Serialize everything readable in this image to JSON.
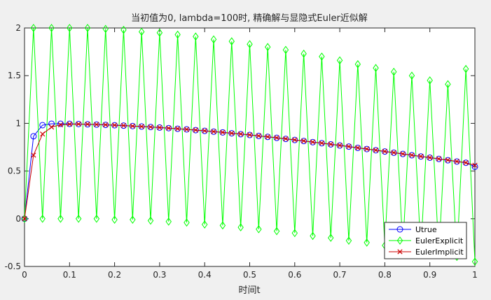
{
  "chart_data": {
    "type": "line",
    "title": "当初值为0, lambda=100时, 精确解与显隐式Euler近似解",
    "xlabel": "时间t",
    "ylabel": "",
    "xlim": [
      0,
      1
    ],
    "ylim": [
      -0.5,
      2
    ],
    "xticks": [
      0,
      0.1,
      0.2,
      0.3,
      0.4,
      0.5,
      0.6,
      0.7,
      0.8,
      0.9,
      1
    ],
    "xtick_labels": [
      "0",
      "0.1",
      "0.2",
      "0.3",
      "0.4",
      "0.5",
      "0.6",
      "0.7",
      "0.8",
      "0.9",
      "1"
    ],
    "yticks": [
      -0.5,
      0,
      0.5,
      1,
      1.5,
      2
    ],
    "ytick_labels": [
      "-0.5",
      "0",
      "0.5",
      "1",
      "1.5",
      "2"
    ],
    "grid": false,
    "legend_position": "bottom-right",
    "x": [
      0,
      0.02,
      0.04,
      0.06,
      0.08,
      0.1,
      0.12,
      0.14,
      0.16,
      0.18,
      0.2,
      0.22,
      0.24,
      0.26,
      0.28,
      0.3,
      0.32,
      0.34,
      0.36,
      0.38,
      0.4,
      0.42,
      0.44,
      0.46,
      0.48,
      0.5,
      0.52,
      0.54,
      0.56,
      0.58,
      0.6,
      0.62,
      0.64,
      0.66,
      0.68,
      0.7,
      0.72,
      0.74,
      0.76,
      0.78,
      0.8,
      0.82,
      0.84,
      0.86,
      0.88,
      0.9,
      0.92,
      0.94,
      0.96,
      0.98,
      1
    ],
    "series": [
      {
        "name": "Utrue",
        "color": "#0000ff",
        "marker": "circle",
        "values": [
          0,
          0.865,
          0.981,
          0.996,
          0.996,
          0.995,
          0.993,
          0.99,
          0.987,
          0.984,
          0.98,
          0.976,
          0.972,
          0.967,
          0.962,
          0.956,
          0.95,
          0.943,
          0.937,
          0.929,
          0.921,
          0.913,
          0.905,
          0.896,
          0.887,
          0.878,
          0.868,
          0.858,
          0.848,
          0.837,
          0.826,
          0.815,
          0.803,
          0.792,
          0.78,
          0.768,
          0.756,
          0.743,
          0.731,
          0.718,
          0.705,
          0.692,
          0.679,
          0.666,
          0.653,
          0.64,
          0.627,
          0.613,
          0.6,
          0.587,
          0.545
        ]
      },
      {
        "name": "EulerExplicit",
        "color": "#00ff00",
        "marker": "diamond",
        "values": [
          0,
          2,
          0,
          2,
          0,
          2,
          0,
          2,
          0,
          1.99,
          -0.01,
          1.98,
          -0.01,
          1.96,
          -0.02,
          1.95,
          -0.03,
          1.93,
          -0.04,
          1.91,
          -0.06,
          1.88,
          -0.07,
          1.86,
          -0.09,
          1.83,
          -0.11,
          1.8,
          -0.13,
          1.77,
          -0.15,
          1.73,
          -0.18,
          1.7,
          -0.2,
          1.66,
          -0.23,
          1.62,
          -0.25,
          1.58,
          -0.28,
          1.54,
          -0.31,
          1.5,
          -0.34,
          1.45,
          -0.37,
          1.41,
          -0.4,
          1.57,
          -0.45
        ]
      },
      {
        "name": "EulerImplicit",
        "color": "#cc0000",
        "marker": "x",
        "values": [
          0,
          0.667,
          0.888,
          0.961,
          0.985,
          0.992,
          0.993,
          0.991,
          0.988,
          0.985,
          0.981,
          0.977,
          0.972,
          0.967,
          0.962,
          0.956,
          0.95,
          0.944,
          0.937,
          0.93,
          0.922,
          0.914,
          0.906,
          0.897,
          0.888,
          0.879,
          0.869,
          0.859,
          0.849,
          0.838,
          0.827,
          0.816,
          0.804,
          0.793,
          0.781,
          0.769,
          0.757,
          0.744,
          0.732,
          0.719,
          0.706,
          0.693,
          0.68,
          0.667,
          0.654,
          0.641,
          0.628,
          0.615,
          0.601,
          0.588,
          0.56
        ]
      }
    ]
  }
}
